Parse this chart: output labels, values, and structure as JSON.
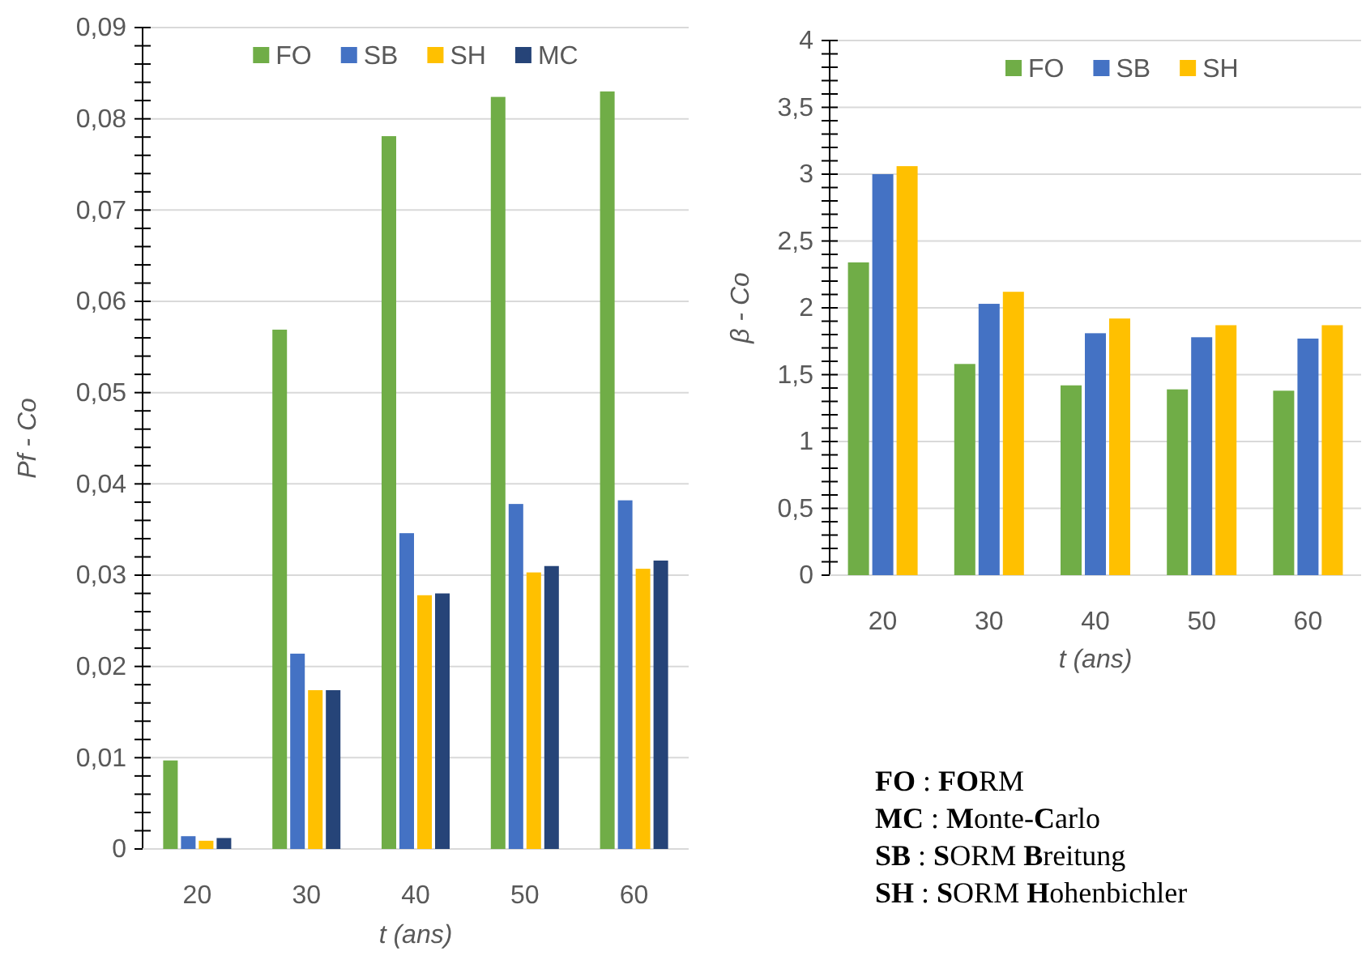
{
  "chart_data": [
    {
      "type": "bar",
      "ylabel": "Pf - Co",
      "xlabel": "t (ans)",
      "categories": [
        "20",
        "30",
        "40",
        "50",
        "60"
      ],
      "series": [
        {
          "name": "FO",
          "color": "#70ad47",
          "values": [
            0.0097,
            0.0569,
            0.0781,
            0.0824,
            0.083
          ]
        },
        {
          "name": "SB",
          "color": "#4472c4",
          "values": [
            0.0014,
            0.0214,
            0.0346,
            0.0378,
            0.0382
          ]
        },
        {
          "name": "SH",
          "color": "#ffc000",
          "values": [
            0.0009,
            0.0174,
            0.0278,
            0.0303,
            0.0307
          ]
        },
        {
          "name": "MC",
          "color": "#264478",
          "values": [
            0.0012,
            0.0174,
            0.028,
            0.031,
            0.0316
          ]
        }
      ],
      "ylim": [
        0,
        0.09
      ],
      "yticks": [
        0,
        {
          "value": 0.002,
          "label": null
        },
        {
          "value": 0.004,
          "label": null
        },
        {
          "value": 0.006,
          "label": null
        },
        {
          "value": 0.008,
          "label": null
        },
        {
          "value": 0.01,
          "label": "0,01"
        },
        {
          "value": 0.012,
          "label": null
        },
        {
          "value": 0.014,
          "label": null
        },
        {
          "value": 0.016,
          "label": null
        },
        {
          "value": 0.018,
          "label": null
        },
        {
          "value": 0.02,
          "label": "0,02"
        },
        {
          "value": 0.022,
          "label": null
        },
        {
          "value": 0.024,
          "label": null
        },
        {
          "value": 0.026,
          "label": null
        },
        {
          "value": 0.028,
          "label": null
        },
        {
          "value": 0.03,
          "label": "0,03"
        },
        {
          "value": 0.032,
          "label": null
        },
        {
          "value": 0.034,
          "label": null
        },
        {
          "value": 0.036,
          "label": null
        },
        {
          "value": 0.038,
          "label": null
        },
        {
          "value": 0.04,
          "label": "0,04"
        },
        {
          "value": 0.042,
          "label": null
        },
        {
          "value": 0.044,
          "label": null
        },
        {
          "value": 0.046,
          "label": null
        },
        {
          "value": 0.048,
          "label": null
        },
        {
          "value": 0.05,
          "label": "0,05"
        },
        {
          "value": 0.052,
          "label": null
        },
        {
          "value": 0.054,
          "label": null
        },
        {
          "value": 0.056,
          "label": null
        },
        {
          "value": 0.058,
          "label": null
        },
        {
          "value": 0.06,
          "label": "0,06"
        },
        {
          "value": 0.062,
          "label": null
        },
        {
          "value": 0.064,
          "label": null
        },
        {
          "value": 0.066,
          "label": null
        },
        {
          "value": 0.068,
          "label": null
        },
        {
          "value": 0.07,
          "label": "0,07"
        },
        {
          "value": 0.072,
          "label": null
        },
        {
          "value": 0.074,
          "label": null
        },
        {
          "value": 0.076,
          "label": null
        },
        {
          "value": 0.078,
          "label": null
        },
        {
          "value": 0.08,
          "label": "0,08"
        },
        {
          "value": 0.082,
          "label": null
        },
        {
          "value": 0.084,
          "label": null
        },
        {
          "value": 0.086,
          "label": null
        },
        {
          "value": 0.088,
          "label": null
        },
        {
          "value": 0.09,
          "label": "0,09"
        }
      ],
      "grid": "y",
      "legend": "top"
    },
    {
      "type": "bar",
      "ylabel": "β - Co",
      "xlabel": "t (ans)",
      "categories": [
        "20",
        "30",
        "40",
        "50",
        "60"
      ],
      "series": [
        {
          "name": "FO",
          "color": "#70ad47",
          "values": [
            2.34,
            1.58,
            1.42,
            1.39,
            1.38
          ]
        },
        {
          "name": "SB",
          "color": "#4472c4",
          "values": [
            3.0,
            2.03,
            1.81,
            1.78,
            1.77
          ]
        },
        {
          "name": "SH",
          "color": "#ffc000",
          "values": [
            3.06,
            2.12,
            1.92,
            1.87,
            1.87
          ]
        }
      ],
      "ylim": [
        0,
        4
      ],
      "yticks": [
        0,
        {
          "value": 0.1,
          "label": null
        },
        {
          "value": 0.2,
          "label": null
        },
        {
          "value": 0.3,
          "label": null
        },
        {
          "value": 0.4,
          "label": null
        },
        {
          "value": 0.5,
          "label": "0,5"
        },
        {
          "value": 0.6,
          "label": null
        },
        {
          "value": 0.7,
          "label": null
        },
        {
          "value": 0.8,
          "label": null
        },
        {
          "value": 0.9,
          "label": null
        },
        1,
        {
          "value": 1.1,
          "label": null
        },
        {
          "value": 1.2,
          "label": null
        },
        {
          "value": 1.3,
          "label": null
        },
        {
          "value": 1.4,
          "label": null
        },
        {
          "value": 1.5,
          "label": "1,5"
        },
        {
          "value": 1.6,
          "label": null
        },
        {
          "value": 1.7,
          "label": null
        },
        {
          "value": 1.8,
          "label": null
        },
        {
          "value": 1.9,
          "label": null
        },
        2,
        {
          "value": 2.1,
          "label": null
        },
        {
          "value": 2.2,
          "label": null
        },
        {
          "value": 2.3,
          "label": null
        },
        {
          "value": 2.4,
          "label": null
        },
        {
          "value": 2.5,
          "label": "2,5"
        },
        {
          "value": 2.6,
          "label": null
        },
        {
          "value": 2.7,
          "label": null
        },
        {
          "value": 2.8,
          "label": null
        },
        {
          "value": 2.9,
          "label": null
        },
        3,
        {
          "value": 3.1,
          "label": null
        },
        {
          "value": 3.2,
          "label": null
        },
        {
          "value": 3.3,
          "label": null
        },
        {
          "value": 3.4,
          "label": null
        },
        {
          "value": 3.5,
          "label": "3,5"
        },
        {
          "value": 3.6,
          "label": null
        },
        {
          "value": 3.7,
          "label": null
        },
        {
          "value": 3.8,
          "label": null
        },
        {
          "value": 3.9,
          "label": null
        },
        4
      ],
      "grid": "y",
      "legend": "top"
    },
    {
      "type": "other",
      "annotations": [
        "FO : FORM",
        "MC : Monte-Carlo",
        "SB : SORM Breitung",
        "SH : SORM Hohenbichler"
      ]
    }
  ]
}
